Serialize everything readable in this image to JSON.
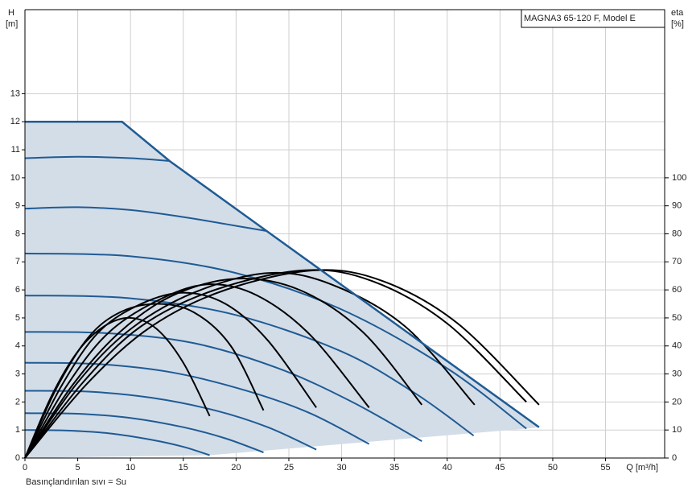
{
  "chart_data": {
    "type": "pump-curve",
    "title": "MAGNA3 65-120 F, Model E",
    "y_label_top": "H",
    "y_label_unit": "[m]",
    "y2_label_top": "eta",
    "y2_label_unit": "[%]",
    "x_label": "Q [m³/h]",
    "footnote": "Basınçlandırılan sıvı = Su",
    "xlim": [
      0,
      60.6
    ],
    "xticks": [
      0,
      5,
      10,
      15,
      20,
      25,
      30,
      35,
      40,
      45,
      50,
      55
    ],
    "ylim": [
      0,
      16
    ],
    "yticks": [
      0,
      1,
      2,
      3,
      4,
      5,
      6,
      7,
      8,
      9,
      10,
      11,
      12,
      13
    ],
    "y2lim": [
      0,
      160
    ],
    "y2ticks": [
      0,
      10,
      20,
      30,
      40,
      50,
      60,
      70,
      80,
      90,
      100
    ],
    "grid": true,
    "fill_color": "#d3dde8",
    "envelope": {
      "color": "#1f5b94",
      "x": [
        0,
        9.2,
        13.7,
        22.9,
        48.7
      ],
      "values": [
        12,
        12,
        10.6,
        8.1,
        1.1
      ]
    },
    "lower_boundary": {
      "x": [
        0,
        17.5,
        47.5,
        48.7
      ],
      "values": [
        0,
        0.1,
        1.05,
        1.1
      ]
    },
    "series": [
      {
        "color": "#1f5b94",
        "x": [
          0,
          5,
          10,
          13.7
        ],
        "values": [
          10.7,
          10.75,
          10.7,
          10.6
        ]
      },
      {
        "color": "#1f5b94",
        "x": [
          0,
          5,
          10,
          15,
          19,
          22.9
        ],
        "values": [
          8.9,
          8.95,
          8.85,
          8.6,
          8.35,
          8.1
        ]
      },
      {
        "color": "#1f5b94",
        "x": [
          0,
          10,
          20,
          30,
          40,
          47.5
        ],
        "values": [
          7.3,
          7.2,
          6.6,
          5.3,
          3.2,
          1.05
        ]
      },
      {
        "color": "#1f5b94",
        "x": [
          0,
          10,
          20,
          30,
          37,
          42.5
        ],
        "values": [
          5.8,
          5.7,
          5.1,
          3.8,
          2.3,
          0.8
        ]
      },
      {
        "color": "#1f5b94",
        "x": [
          0,
          8,
          16,
          24,
          31,
          37.6
        ],
        "values": [
          4.5,
          4.45,
          4.1,
          3.2,
          2.0,
          0.6
        ]
      },
      {
        "color": "#1f5b94",
        "x": [
          0,
          7,
          14,
          21,
          27,
          32.6
        ],
        "values": [
          3.4,
          3.35,
          3.05,
          2.4,
          1.6,
          0.5
        ]
      },
      {
        "color": "#1f5b94",
        "x": [
          0,
          6,
          12,
          18,
          23,
          27.6
        ],
        "values": [
          2.4,
          2.37,
          2.15,
          1.7,
          1.1,
          0.3
        ]
      },
      {
        "color": "#1f5b94",
        "x": [
          0,
          5,
          10,
          15,
          19,
          22.6
        ],
        "values": [
          1.6,
          1.58,
          1.43,
          1.1,
          0.7,
          0.2
        ]
      },
      {
        "color": "#1f5b94",
        "x": [
          0,
          4,
          8,
          12,
          15,
          17.5
        ],
        "values": [
          1.0,
          0.98,
          0.88,
          0.65,
          0.4,
          0.1
        ]
      },
      {
        "color": "#000000",
        "axis": "y2",
        "x": [
          0,
          2.5,
          5,
          7.5,
          10,
          12.5,
          15,
          17.5
        ],
        "values": [
          0,
          22,
          38,
          47,
          50,
          46,
          34,
          15
        ]
      },
      {
        "color": "#000000",
        "axis": "y2",
        "x": [
          0,
          3,
          6,
          9,
          12.5,
          16,
          19.5,
          22.6
        ],
        "values": [
          0,
          25,
          43,
          52,
          55,
          52,
          40,
          17
        ]
      },
      {
        "color": "#000000",
        "axis": "y2",
        "x": [
          0,
          3.5,
          7,
          11,
          15,
          19,
          23,
          27.6
        ],
        "values": [
          0,
          26,
          45,
          55,
          59,
          55,
          42,
          18
        ]
      },
      {
        "color": "#000000",
        "axis": "y2",
        "x": [
          0,
          4,
          8,
          13,
          17.5,
          22,
          27,
          32.6
        ],
        "values": [
          0,
          26,
          45,
          57,
          62,
          58,
          44,
          18
        ]
      },
      {
        "color": "#000000",
        "axis": "y2",
        "x": [
          0,
          4.5,
          9,
          14,
          20,
          26,
          32,
          37.6
        ],
        "values": [
          0,
          26,
          45,
          58,
          64,
          60,
          45,
          19
        ]
      },
      {
        "color": "#000000",
        "axis": "y2",
        "x": [
          0,
          5,
          10,
          16,
          23,
          29,
          36,
          42.6
        ],
        "values": [
          0,
          27,
          46,
          59,
          66,
          62,
          47,
          19
        ]
      },
      {
        "color": "#000000",
        "axis": "y2",
        "x": [
          0,
          5.5,
          11,
          18,
          26.5,
          33,
          40,
          47.5
        ],
        "values": [
          0,
          27,
          47,
          60,
          67,
          63,
          48,
          20
        ]
      },
      {
        "color": "#000000",
        "axis": "y2",
        "x": [
          0,
          6,
          12,
          19,
          27.5,
          34,
          41,
          48.7
        ],
        "values": [
          0,
          27,
          47,
          60,
          67,
          63,
          48,
          19
        ]
      }
    ]
  }
}
